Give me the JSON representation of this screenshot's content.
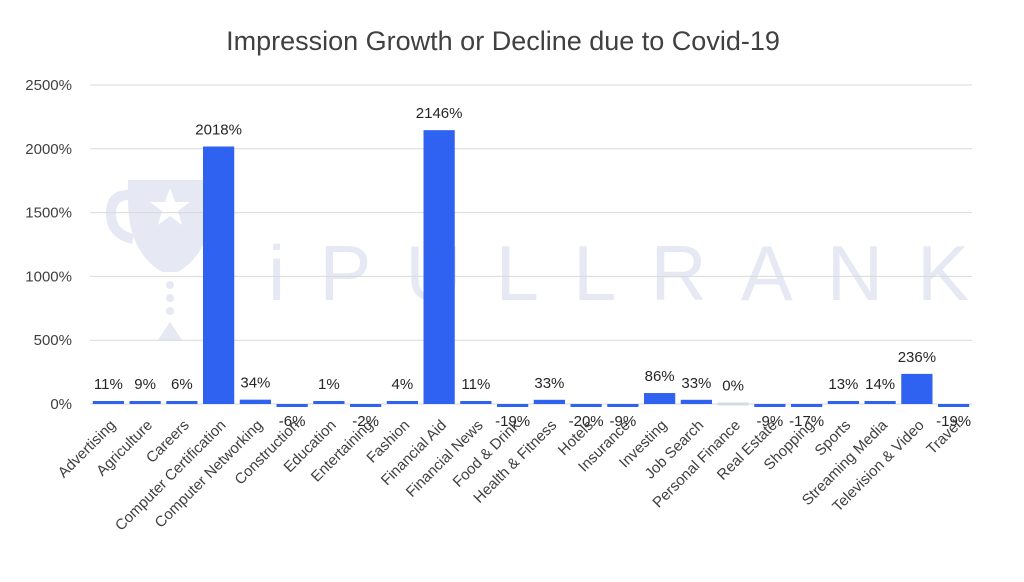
{
  "chart_data": {
    "type": "bar",
    "title": "Impression Growth or Decline due to Covid-19",
    "categories": [
      "Advertising",
      "Agriculture",
      "Careers",
      "Computer Certification",
      "Computer Networking",
      "Construction",
      "Education",
      "Entertaining",
      "Fashion",
      "Financial Aid",
      "Financial News",
      "Food & Drink",
      "Health & Fitness",
      "Hotels",
      "Insurance",
      "Investing",
      "Job Search",
      "Personal Finance",
      "Real Estate",
      "Shopping",
      "Sports",
      "Streaming Media",
      "Television & Video",
      "Travel"
    ],
    "values": [
      11,
      9,
      6,
      2018,
      34,
      -6,
      1,
      -2,
      4,
      2146,
      11,
      -19,
      33,
      -20,
      -9,
      86,
      33,
      0,
      -9,
      -17,
      13,
      14,
      236,
      -19
    ],
    "data_labels": [
      "11%",
      "9%",
      "6%",
      "2018%",
      "34%",
      "-6%",
      "1%",
      "-2%",
      "4%",
      "2146%",
      "11%",
      "-19%",
      "33%",
      "-20%",
      "-9%",
      "86%",
      "33%",
      "0%",
      "-9%",
      "-17%",
      "13%",
      "14%",
      "236%",
      "-19%"
    ],
    "y_ticks": [
      0,
      500,
      1000,
      1500,
      2000,
      2500
    ],
    "y_tick_labels": [
      "0%",
      "500%",
      "1000%",
      "1500%",
      "2000%",
      "2500%"
    ],
    "ylim": [
      0,
      2500
    ],
    "grid": true,
    "legend": "none",
    "colors": {
      "bar": "#2f62f0",
      "zero_bar": "#d6dbe6"
    }
  },
  "watermark": {
    "text": "iPULLRANK",
    "icon": "trophy-icon"
  }
}
